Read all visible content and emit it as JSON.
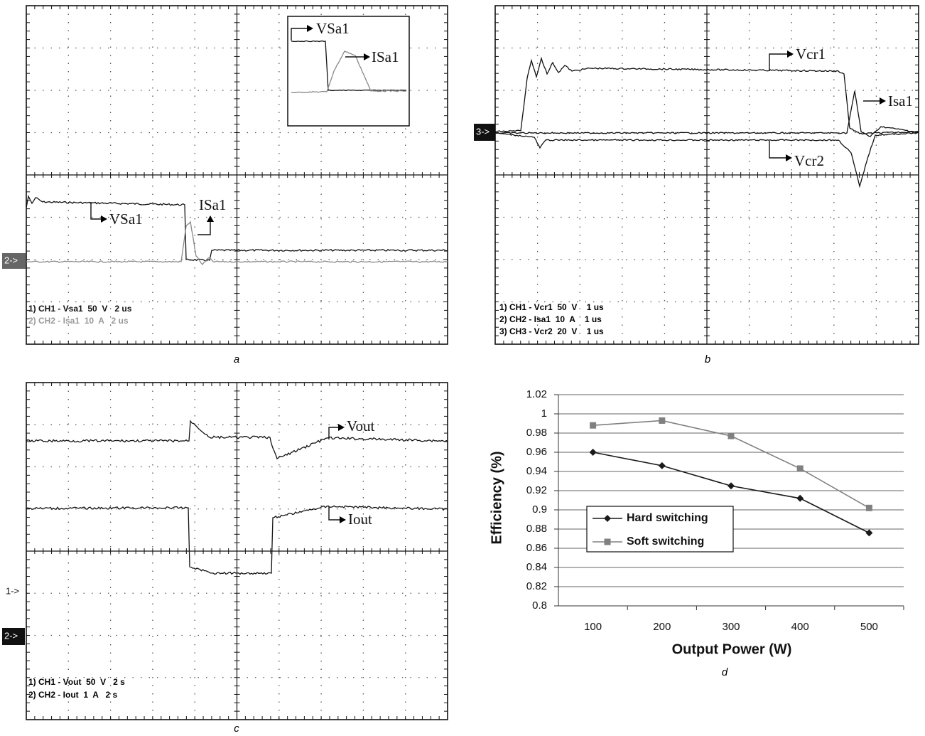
{
  "panel_a": {
    "inset_labels": [
      "VSa1",
      "ISa1"
    ],
    "trace_labels": [
      "VSa1",
      "ISa1"
    ],
    "marker": "2->",
    "channels": [
      "1) CH1 - Vsa1  50  V   2 us",
      "2) CH2 - Isa1  10  A   2 us"
    ],
    "caption": "a"
  },
  "panel_b": {
    "trace_labels": [
      "Vcr1",
      "Isa1",
      "Vcr2"
    ],
    "marker": "3->",
    "channels": [
      "1) CH1 - Vcr1  50  V    1 us",
      "2) CH2 - Isa1  10  A    1 us",
      "3) CH3 - Vcr2  20  V    1 us"
    ],
    "caption": "b"
  },
  "panel_c": {
    "trace_labels": [
      "Vout",
      "Iout"
    ],
    "markers": [
      "1->",
      "2->"
    ],
    "channels": [
      "1) CH1 - Vout  50  V   2 s",
      "2) CH2 - Iout  1  A   2 s"
    ],
    "caption": "c"
  },
  "chart_data": {
    "type": "line",
    "x_label": "Output Power (W)",
    "y_label": "Efficiency (%)",
    "caption": "d",
    "categories": [
      "100",
      "200",
      "300",
      "400",
      "500"
    ],
    "series": [
      {
        "name": "Hard switching",
        "color": "#1a1a1a",
        "marker": "diamond",
        "values": [
          0.96,
          0.946,
          0.925,
          0.912,
          0.876
        ]
      },
      {
        "name": "Soft switching",
        "color": "#808080",
        "marker": "square",
        "values": [
          0.988,
          0.993,
          0.977,
          0.943,
          0.902
        ]
      }
    ],
    "ylim": [
      0.8,
      1.02
    ],
    "yticks": [
      0.8,
      0.82,
      0.84,
      0.86,
      0.88,
      0.9,
      0.92,
      0.94,
      0.96,
      0.98,
      1,
      1.02
    ],
    "grid": true
  }
}
